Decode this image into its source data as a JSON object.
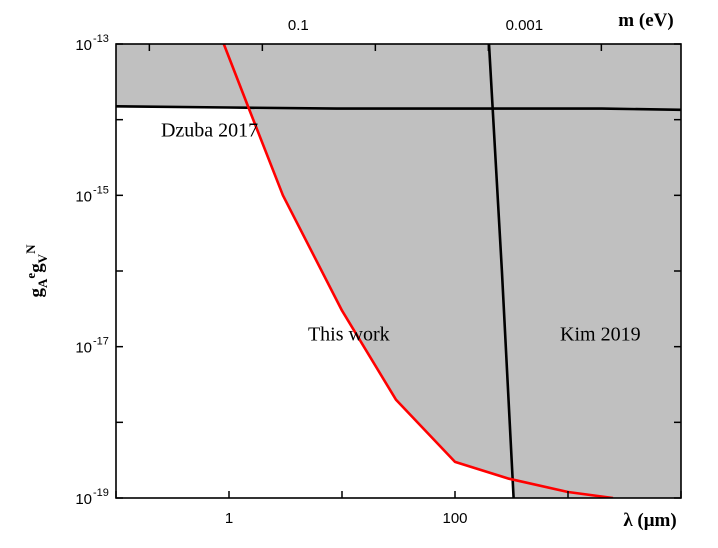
{
  "chart_data": {
    "type": "line",
    "x_axis": {
      "label": "λ (μm)",
      "scale": "log",
      "range": [
        0.1,
        10000
      ],
      "tick_labels": [
        {
          "value": 1,
          "text": "1"
        },
        {
          "value": 100,
          "text": "100"
        }
      ]
    },
    "top_axis": {
      "label": "m (eV)",
      "tick_labels": [
        {
          "value": 0.1,
          "text": "0.1"
        },
        {
          "value": 0.001,
          "text": "0.001"
        }
      ]
    },
    "y_axis": {
      "label_main": "g",
      "label_sub1": "A",
      "label_sup1": "e",
      "label_main2": "g",
      "label_sub2": "V",
      "label_sup2": "N",
      "scale": "log",
      "range": [
        1e-19,
        1e-13
      ],
      "tick_labels": [
        {
          "value": 1e-13,
          "base": "10",
          "exp": "-13"
        },
        {
          "value": 1e-15,
          "base": "10",
          "exp": "-15"
        },
        {
          "value": 1e-17,
          "base": "10",
          "exp": "-17"
        },
        {
          "value": 1e-19,
          "base": "10",
          "exp": "-19"
        }
      ]
    },
    "shaded_region": "excluded parameter space above curves",
    "shade_color": "#c0c0c0",
    "series": [
      {
        "name": "Dzuba 2017",
        "color": "#000000",
        "points": [
          [
            0.1,
            1.5e-14
          ],
          [
            1,
            1.45e-14
          ],
          [
            9,
            1.4e-14
          ],
          [
            2000,
            1.4e-14
          ],
          [
            10000,
            1.35e-14
          ]
        ]
      },
      {
        "name": "Kim 2019",
        "color": "#000000",
        "points": [
          [
            200,
            1e-13
          ],
          [
            260,
            1e-16
          ],
          [
            330,
            1e-19
          ]
        ]
      },
      {
        "name": "This work",
        "color": "#ff0000",
        "points": [
          [
            0.9,
            1e-13
          ],
          [
            1.5,
            1.4e-14
          ],
          [
            3,
            1e-15
          ],
          [
            10,
            3e-17
          ],
          [
            30,
            2e-18
          ],
          [
            100,
            3e-19
          ],
          [
            300,
            1.8e-19
          ],
          [
            1000,
            1.2e-19
          ],
          [
            2500,
            1e-19
          ]
        ]
      }
    ],
    "annotations": [
      {
        "text": "Dzuba 2017",
        "x": 0.25,
        "y": 6e-15
      },
      {
        "text": "This work",
        "x": 5,
        "y": 1.2e-17
      },
      {
        "text": "Kim 2019",
        "x": 850,
        "y": 1.2e-17
      }
    ]
  }
}
